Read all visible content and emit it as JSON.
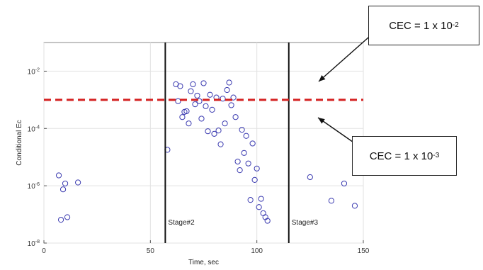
{
  "chart_data": {
    "type": "scatter",
    "title": "",
    "xlabel": "Time, sec",
    "ylabel": "Conditional Ec",
    "xlim": [
      0,
      150
    ],
    "y_scale": "log",
    "ylim": [
      1e-08,
      0.1
    ],
    "x_ticks": [
      "0",
      "50",
      "100",
      "150"
    ],
    "y_ticks": [
      {
        "value": 0.01,
        "base": "10",
        "exp": "-2"
      },
      {
        "value": 0.0001,
        "base": "10",
        "exp": "-4"
      },
      {
        "value": 1e-06,
        "base": "10",
        "exp": "-6"
      },
      {
        "value": 1e-08,
        "base": "10",
        "exp": "-8"
      }
    ],
    "grid": true,
    "marker": "open-circle",
    "marker_color": "#3a3ab0",
    "threshold_line": {
      "y": 0.001,
      "color": "#d42020",
      "style": "dashed"
    },
    "stage_boundaries": [
      {
        "x": 57,
        "label": "Stage#2"
      },
      {
        "x": 115,
        "label": "Stage#3"
      }
    ],
    "series": [
      {
        "points": [
          [
            7,
            2.3e-06
          ],
          [
            8,
            6.5e-08
          ],
          [
            9,
            7.5e-07
          ],
          [
            10,
            1.2e-06
          ],
          [
            11,
            8e-08
          ],
          [
            16,
            1.3e-06
          ],
          [
            58,
            1.8e-05
          ],
          [
            62,
            0.0035
          ],
          [
            63,
            0.0009
          ],
          [
            64,
            0.003
          ],
          [
            65,
            0.00025
          ],
          [
            66,
            0.00038
          ],
          [
            67,
            0.0004
          ],
          [
            68,
            0.00015
          ],
          [
            69,
            0.002
          ],
          [
            70,
            0.0035
          ],
          [
            71,
            0.0007
          ],
          [
            72,
            0.0014
          ],
          [
            73,
            0.0009
          ],
          [
            74,
            0.00022
          ],
          [
            75,
            0.0038
          ],
          [
            76,
            0.0006
          ],
          [
            77,
            8e-05
          ],
          [
            78,
            0.0015
          ],
          [
            79,
            0.00045
          ],
          [
            80,
            6.5e-05
          ],
          [
            81,
            0.0012
          ],
          [
            82,
            8.5e-05
          ],
          [
            83,
            2.8e-05
          ],
          [
            84,
            0.0011
          ],
          [
            85,
            0.00015
          ],
          [
            86,
            0.0022
          ],
          [
            87,
            0.004
          ],
          [
            88,
            0.00065
          ],
          [
            89,
            0.0012
          ],
          [
            90,
            0.00025
          ],
          [
            91,
            7e-06
          ],
          [
            92,
            3.5e-06
          ],
          [
            93,
            9e-05
          ],
          [
            94,
            1.4e-05
          ],
          [
            95,
            5.5e-05
          ],
          [
            96,
            6e-06
          ],
          [
            97,
            3.2e-07
          ],
          [
            98,
            3e-05
          ],
          [
            99,
            1.6e-06
          ],
          [
            100,
            4e-06
          ],
          [
            101,
            1.8e-07
          ],
          [
            102,
            3.5e-07
          ],
          [
            103,
            1.1e-07
          ],
          [
            104,
            8e-08
          ],
          [
            105,
            6e-08
          ],
          [
            125,
            2e-06
          ],
          [
            135,
            3e-07
          ],
          [
            141,
            1.2e-06
          ],
          [
            146,
            2e-07
          ]
        ]
      }
    ]
  },
  "callouts": [
    {
      "prefix": "CEC = 1 x 10",
      "exp": "-2"
    },
    {
      "prefix": "CEC = 1 x 10",
      "exp": "-3"
    }
  ]
}
